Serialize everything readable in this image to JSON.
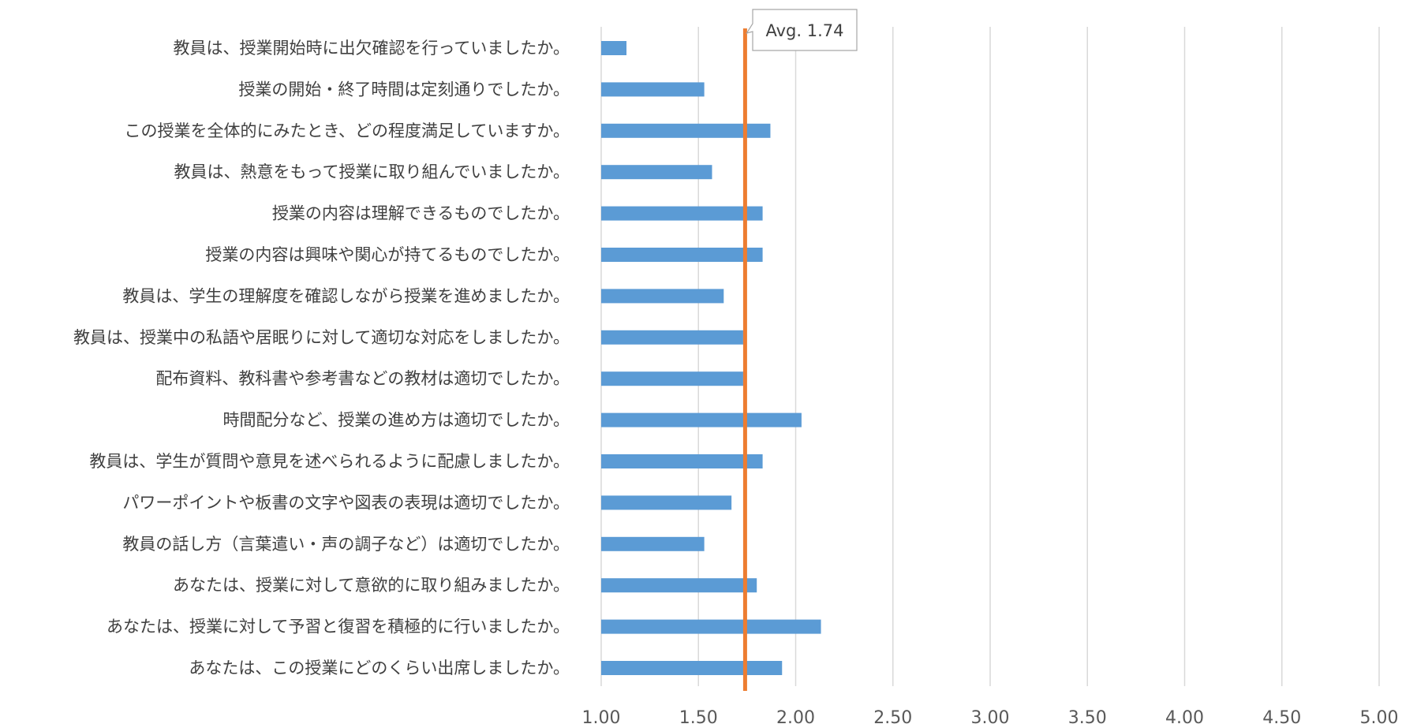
{
  "chart_data": {
    "type": "bar",
    "orientation": "horizontal",
    "categories": [
      "教員は、授業開始時に出欠確認を行っていましたか。",
      "授業の開始・終了時間は定刻通りでしたか。",
      "この授業を全体的にみたとき、どの程度満足していますか。",
      "教員は、熱意をもって授業に取り組んでいましたか。",
      "授業の内容は理解できるものでしたか。",
      "授業の内容は興味や関心が持てるものでしたか。",
      "教員は、学生の理解度を確認しながら授業を進めましたか。",
      "教員は、授業中の私語や居眠りに対して適切な対応をしましたか。",
      "配布資料、教科書や参考書などの教材は適切でしたか。",
      "時間配分など、授業の進め方は適切でしたか。",
      "教員は、学生が質問や意見を述べられるように配慮しましたか。",
      "パワーポイントや板書の文字や図表の表現は適切でしたか。",
      "教員の話し方（言葉遣い・声の調子など）は適切でしたか。",
      "あなたは、授業に対して意欲的に取り組みましたか。",
      "あなたは、授業に対して予習と復習を積極的に行いましたか。",
      "あなたは、この授業にどのくらい出席しましたか。"
    ],
    "values": [
      1.13,
      1.53,
      1.87,
      1.57,
      1.83,
      1.83,
      1.63,
      1.73,
      1.73,
      2.03,
      1.83,
      1.67,
      1.53,
      1.8,
      2.13,
      1.93
    ],
    "xlim": [
      1.0,
      5.0
    ],
    "xticks": [
      "1.00",
      "1.50",
      "2.00",
      "2.50",
      "3.00",
      "3.50",
      "4.00",
      "4.50",
      "5.00"
    ],
    "grid": "vertical",
    "average": {
      "value": 1.74,
      "label": "Avg. 1.74"
    },
    "colors": {
      "bar": "#5b9bd5",
      "avg_line": "#ed7d31",
      "grid": "#d9d9d9",
      "label": "#404040"
    }
  }
}
